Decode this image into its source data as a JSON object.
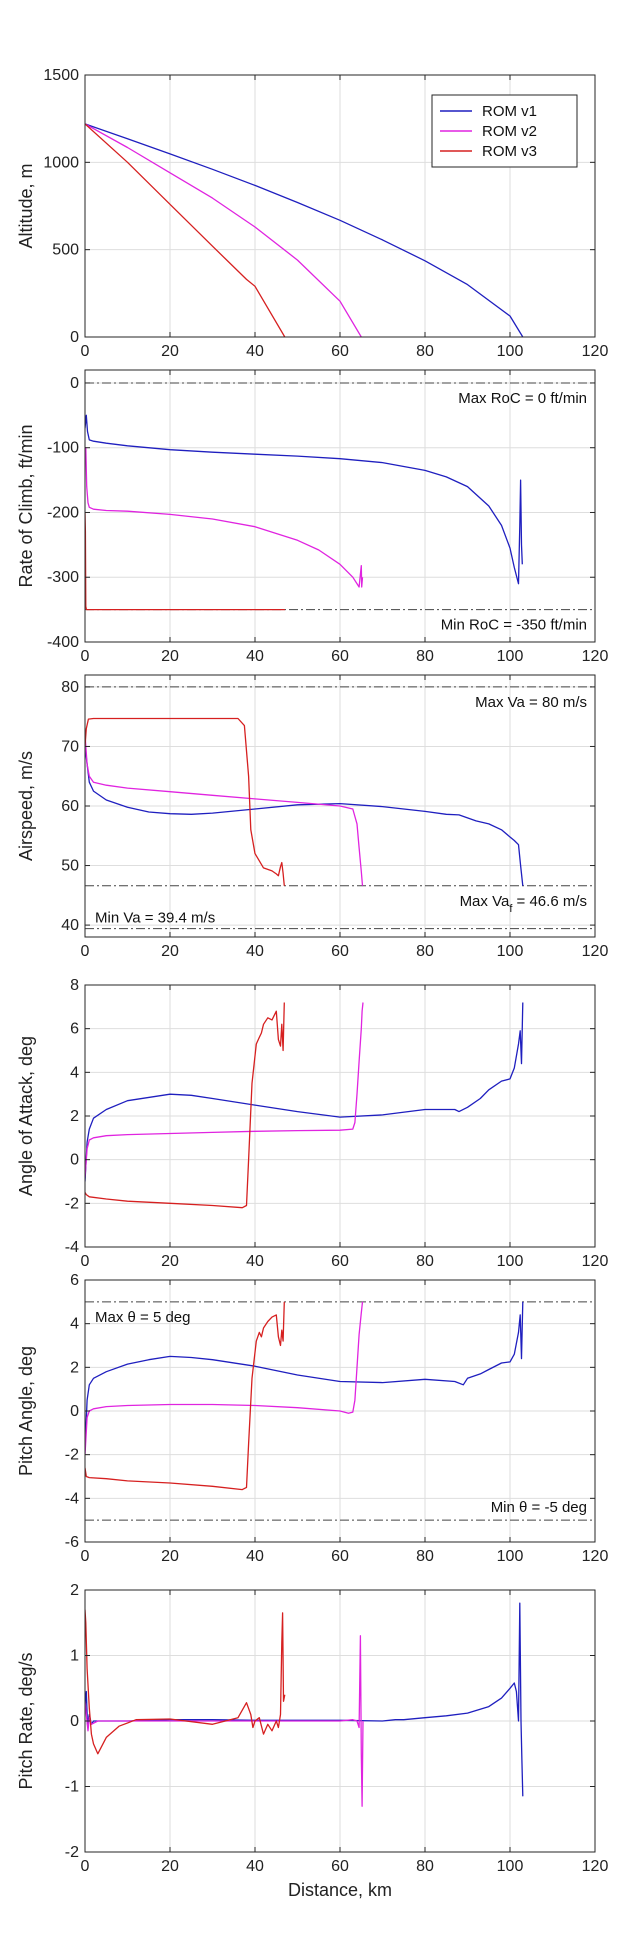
{
  "colors": {
    "ROM v1": "#1f1fbf",
    "ROM v2": "#e024e0",
    "ROM v3": "#d62020",
    "grid": "#dedede",
    "reference": "#444444"
  },
  "chart_data": [
    {
      "type": "line",
      "ylabel": "Altitude, m",
      "xlabel": "",
      "xlim": [
        0,
        120
      ],
      "ylim": [
        0,
        1500
      ],
      "xticks": [
        0,
        20,
        40,
        60,
        80,
        100,
        120
      ],
      "yticks": [
        0,
        500,
        1000,
        1500
      ],
      "grid": true,
      "legend": {
        "placement": "top-right",
        "entries": [
          "ROM v1",
          "ROM v2",
          "ROM v3"
        ]
      },
      "reference_lines": [],
      "series": [
        {
          "name": "ROM v1",
          "x": [
            0,
            10,
            20,
            30,
            40,
            50,
            60,
            70,
            80,
            90,
            100,
            103
          ],
          "y": [
            1220,
            1135,
            1048,
            960,
            868,
            770,
            668,
            556,
            436,
            300,
            120,
            0
          ]
        },
        {
          "name": "ROM v2",
          "x": [
            0,
            10,
            20,
            30,
            40,
            50,
            60,
            65
          ],
          "y": [
            1220,
            1085,
            940,
            795,
            630,
            440,
            205,
            0
          ]
        },
        {
          "name": "ROM v3",
          "x": [
            0,
            10,
            20,
            30,
            38,
            40,
            47
          ],
          "y": [
            1220,
            1000,
            760,
            520,
            330,
            290,
            0
          ]
        }
      ]
    },
    {
      "type": "line",
      "ylabel": "Rate of Climb, ft/min",
      "xlabel": "",
      "xlim": [
        0,
        120
      ],
      "ylim": [
        -400,
        20
      ],
      "xticks": [
        0,
        20,
        40,
        60,
        80,
        100,
        120
      ],
      "yticks": [
        -400,
        -300,
        -200,
        -100,
        0
      ],
      "grid": true,
      "legend": null,
      "reference_lines": [
        {
          "y": 0,
          "label": "Max RoC = 0 ft/min",
          "label_side": "below"
        },
        {
          "y": -350,
          "label": "Min RoC = -350 ft/min",
          "label_side": "below"
        }
      ],
      "series": [
        {
          "name": "ROM v1",
          "x": [
            0,
            0.3,
            0.6,
            1,
            2,
            5,
            10,
            20,
            30,
            40,
            50,
            60,
            70,
            80,
            85,
            90,
            95,
            98,
            100,
            101,
            102,
            102.3,
            102.5,
            102.7,
            102.9
          ],
          "y": [
            -70,
            -50,
            -75,
            -88,
            -90,
            -93,
            -97,
            -103,
            -107,
            -110,
            -113,
            -117,
            -123,
            -135,
            -145,
            -160,
            -190,
            -220,
            -255,
            -285,
            -310,
            -220,
            -150,
            -250,
            -280
          ]
        },
        {
          "name": "ROM v2",
          "x": [
            0,
            0.2,
            0.4,
            0.7,
            1,
            2,
            5,
            10,
            20,
            30,
            40,
            50,
            55,
            60,
            63,
            64.5,
            65,
            65.1,
            65.3
          ],
          "y": [
            -120,
            -100,
            -160,
            -185,
            -192,
            -195,
            -197,
            -198,
            -203,
            -210,
            -222,
            -243,
            -258,
            -280,
            -300,
            -315,
            -282,
            -315,
            -300
          ]
        },
        {
          "name": "ROM v3",
          "x": [
            0,
            0.1,
            0.2,
            0.3,
            0.4,
            1,
            10,
            20,
            30,
            40,
            47
          ],
          "y": [
            -200,
            -230,
            -345,
            -349,
            -350,
            -350,
            -350,
            -350,
            -350,
            -350,
            -350
          ]
        }
      ]
    },
    {
      "type": "line",
      "ylabel": "Airspeed, m/s",
      "xlabel": "",
      "xlim": [
        0,
        120
      ],
      "ylim": [
        38,
        82
      ],
      "xticks": [
        0,
        20,
        40,
        60,
        80,
        100,
        120
      ],
      "yticks": [
        40,
        50,
        60,
        70,
        80
      ],
      "grid": true,
      "legend": null,
      "reference_lines": [
        {
          "y": 80,
          "label": "Max Va = 80 m/s",
          "label_side": "below"
        },
        {
          "y": 46.6,
          "label": "Max Va",
          "label_sub": "f",
          "label_tail": " = 46.6 m/s",
          "label_side": "below"
        },
        {
          "y": 39.4,
          "label": "Min Va = 39.4 m/s",
          "label_side": "above-left"
        }
      ],
      "series": [
        {
          "name": "ROM v1",
          "x": [
            0,
            1,
            2,
            5,
            10,
            15,
            20,
            25,
            30,
            40,
            50,
            60,
            70,
            80,
            85,
            88,
            90,
            92,
            95,
            98,
            100,
            101,
            102,
            102.5,
            103
          ],
          "y": [
            70,
            64,
            62.5,
            61,
            59.8,
            59,
            58.7,
            58.6,
            58.8,
            59.5,
            60.2,
            60.4,
            59.9,
            59.1,
            58.6,
            58.5,
            58,
            57.5,
            57,
            56,
            54.8,
            54.2,
            53.5,
            50,
            46.6
          ]
        },
        {
          "name": "ROM v2",
          "x": [
            0,
            0.5,
            1,
            2,
            5,
            10,
            20,
            30,
            40,
            50,
            60,
            63,
            64,
            64.5,
            65,
            65.3
          ],
          "y": [
            72,
            67,
            65,
            64,
            63.5,
            63,
            62.4,
            61.8,
            61.2,
            60.6,
            60,
            59.5,
            57,
            53,
            49,
            46.6
          ]
        },
        {
          "name": "ROM v3",
          "x": [
            0,
            0.3,
            0.8,
            2,
            10,
            20,
            30,
            36,
            37.5,
            38.5,
            39,
            40,
            41,
            42,
            44,
            45,
            45.5,
            46,
            46.3,
            46.6,
            46.9
          ],
          "y": [
            70,
            73,
            74.6,
            74.7,
            74.7,
            74.7,
            74.7,
            74.7,
            73.5,
            65,
            56,
            52,
            50.8,
            49.6,
            49.1,
            48.6,
            48.3,
            49.8,
            50.5,
            48.7,
            46.6
          ]
        }
      ]
    },
    {
      "type": "line",
      "ylabel": "Angle of Attack, deg",
      "xlabel": "",
      "xlim": [
        0,
        120
      ],
      "ylim": [
        -4,
        8
      ],
      "xticks": [
        0,
        20,
        40,
        60,
        80,
        100,
        120
      ],
      "yticks": [
        -4,
        -2,
        0,
        2,
        4,
        6,
        8
      ],
      "grid": true,
      "legend": null,
      "reference_lines": [],
      "series": [
        {
          "name": "ROM v1",
          "x": [
            0,
            0.5,
            1,
            2,
            5,
            10,
            20,
            25,
            30,
            40,
            50,
            60,
            70,
            80,
            87,
            88,
            90,
            93,
            95,
            98,
            100,
            101,
            102,
            102.4,
            102.7,
            103
          ],
          "y": [
            -1,
            0.8,
            1.4,
            1.9,
            2.3,
            2.7,
            3.0,
            2.95,
            2.8,
            2.5,
            2.2,
            1.95,
            2.05,
            2.3,
            2.3,
            2.2,
            2.4,
            2.8,
            3.2,
            3.6,
            3.7,
            4.2,
            5.3,
            5.9,
            4.4,
            7.2
          ]
        },
        {
          "name": "ROM v2",
          "x": [
            0,
            0.5,
            1,
            2,
            5,
            10,
            20,
            30,
            40,
            50,
            60,
            63,
            63.5,
            64,
            64.5,
            65,
            65.2,
            65.4
          ],
          "y": [
            -0.8,
            0.5,
            0.9,
            1.0,
            1.1,
            1.15,
            1.2,
            1.25,
            1.3,
            1.33,
            1.35,
            1.4,
            1.7,
            3.0,
            4.5,
            6.0,
            6.8,
            7.2
          ]
        },
        {
          "name": "ROM v3",
          "x": [
            0,
            0.3,
            1,
            5,
            10,
            20,
            30,
            37,
            38,
            38.5,
            39.3,
            40.3,
            41,
            41.5,
            42,
            43,
            44,
            45,
            45.5,
            46,
            46.3,
            46.6,
            46.9
          ],
          "y": [
            -1.5,
            -1.6,
            -1.7,
            -1.8,
            -1.9,
            -2.0,
            -2.1,
            -2.2,
            -2.1,
            0,
            3.5,
            5.3,
            5.6,
            5.8,
            6.2,
            6.5,
            6.4,
            6.8,
            5.5,
            5.2,
            6.2,
            5.0,
            7.2
          ]
        }
      ]
    },
    {
      "type": "line",
      "ylabel": "Pitch Angle, deg",
      "xlabel": "",
      "xlim": [
        0,
        120
      ],
      "ylim": [
        -6,
        6
      ],
      "xticks": [
        0,
        20,
        40,
        60,
        80,
        100,
        120
      ],
      "yticks": [
        -6,
        -4,
        -2,
        0,
        2,
        4,
        6
      ],
      "grid": true,
      "legend": null,
      "reference_lines": [
        {
          "y": 5,
          "label": "Max θ = 5 deg",
          "label_side": "below-left"
        },
        {
          "y": -5,
          "label": "Min θ = -5 deg",
          "label_side": "above"
        }
      ],
      "series": [
        {
          "name": "ROM v1",
          "x": [
            0,
            0.5,
            1,
            2,
            5,
            10,
            15,
            20,
            25,
            30,
            40,
            50,
            60,
            70,
            80,
            87,
            89,
            90,
            93,
            95,
            98,
            100,
            101,
            102,
            102.4,
            102.7,
            103
          ],
          "y": [
            -1.8,
            0.5,
            1.2,
            1.5,
            1.8,
            2.15,
            2.35,
            2.5,
            2.45,
            2.35,
            2.05,
            1.65,
            1.35,
            1.3,
            1.45,
            1.35,
            1.2,
            1.5,
            1.7,
            1.9,
            2.2,
            2.25,
            2.6,
            3.6,
            4.4,
            2.4,
            5.0
          ]
        },
        {
          "name": "ROM v2",
          "x": [
            0,
            0.5,
            1,
            2,
            5,
            10,
            20,
            30,
            40,
            50,
            60,
            62,
            63,
            63.5,
            64,
            64.5,
            65,
            65.3
          ],
          "y": [
            -2,
            -0.3,
            0,
            0.1,
            0.2,
            0.25,
            0.3,
            0.3,
            0.25,
            0.15,
            0,
            -0.1,
            -0.05,
            0.5,
            2,
            3.5,
            4.5,
            5
          ]
        },
        {
          "name": "ROM v3",
          "x": [
            0,
            0.3,
            1,
            5,
            10,
            20,
            30,
            37,
            38,
            38.5,
            39.3,
            40.3,
            41,
            41.5,
            42,
            43,
            44,
            45,
            45.5,
            46,
            46.3,
            46.6,
            46.9
          ],
          "y": [
            -2.6,
            -3,
            -3.05,
            -3.1,
            -3.2,
            -3.3,
            -3.45,
            -3.6,
            -3.5,
            -1.5,
            1.5,
            3.2,
            3.6,
            3.4,
            3.8,
            4.1,
            4.3,
            4.4,
            3.4,
            3.0,
            3.7,
            3.2,
            5.0
          ]
        }
      ]
    },
    {
      "type": "line",
      "ylabel": "Pitch Rate, deg/s",
      "xlabel": "Distance, km",
      "xlim": [
        0,
        120
      ],
      "ylim": [
        -2,
        2
      ],
      "xticks": [
        0,
        20,
        40,
        60,
        80,
        100,
        120
      ],
      "yticks": [
        -2,
        -1,
        0,
        1,
        2
      ],
      "grid": true,
      "legend": null,
      "reference_lines": [],
      "series": [
        {
          "name": "ROM v1",
          "x": [
            0,
            0.3,
            0.6,
            1,
            1.5,
            2,
            5,
            10,
            20,
            30,
            40,
            50,
            60,
            70,
            73,
            75,
            80,
            85,
            90,
            95,
            98,
            100,
            101,
            101.5,
            102,
            102.3,
            102.6,
            102.8,
            103
          ],
          "y": [
            0.2,
            0.45,
            -0.05,
            0.1,
            -0.05,
            0,
            0,
            0,
            0.02,
            0.02,
            0.01,
            0.01,
            0.01,
            0,
            0.02,
            0.02,
            0.05,
            0.08,
            0.12,
            0.22,
            0.35,
            0.5,
            0.58,
            0.45,
            0,
            1.8,
            0,
            -0.6,
            -1.15
          ]
        },
        {
          "name": "ROM v2",
          "x": [
            0,
            0.3,
            0.7,
            1,
            1.5,
            3,
            5,
            10,
            20,
            30,
            40,
            50,
            60,
            63,
            64,
            64.5,
            64.8,
            65,
            65.2,
            65.4
          ],
          "y": [
            0.3,
            0.1,
            -0.15,
            0.05,
            -0.05,
            0,
            0,
            0,
            0,
            0,
            0,
            0,
            0,
            0.02,
            0,
            -0.1,
            1.3,
            -0.5,
            -1.3,
            0
          ]
        },
        {
          "name": "ROM v3",
          "x": [
            0,
            0.2,
            0.5,
            1,
            1.5,
            2,
            3,
            5,
            8,
            12,
            20,
            30,
            36,
            38,
            39,
            39.5,
            40,
            41,
            42,
            43,
            44,
            45,
            45.5,
            46,
            46.3,
            46.5,
            46.7,
            47
          ],
          "y": [
            1.7,
            1.5,
            0.8,
            0.2,
            -0.2,
            -0.35,
            -0.5,
            -0.25,
            -0.08,
            0.02,
            0.03,
            -0.05,
            0.05,
            0.28,
            0.1,
            -0.1,
            0,
            0.05,
            -0.2,
            -0.05,
            -0.15,
            0,
            -0.1,
            0.1,
            1.2,
            1.65,
            0.3,
            0.4
          ]
        }
      ]
    }
  ]
}
